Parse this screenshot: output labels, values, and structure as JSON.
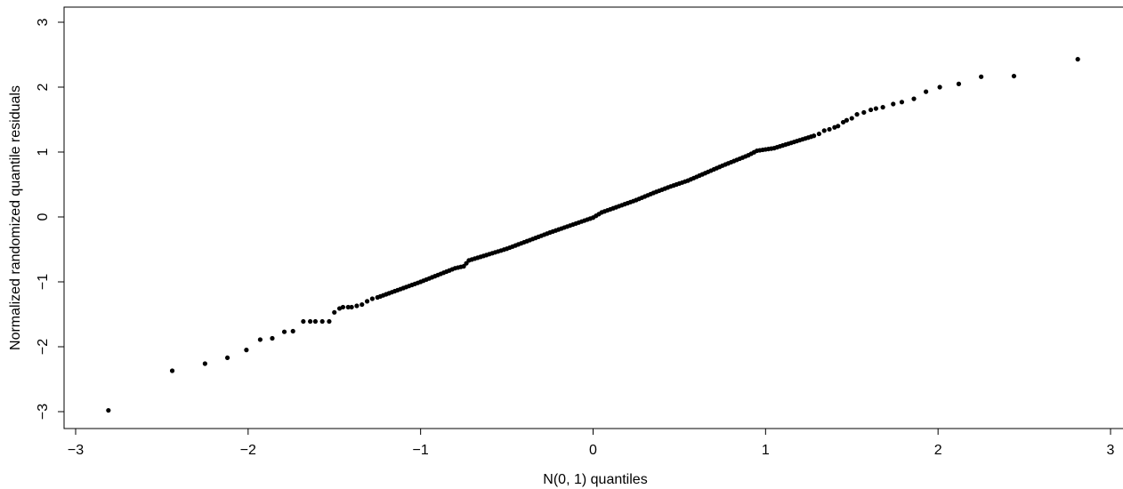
{
  "chart_data": {
    "type": "scatter",
    "title": "",
    "xlabel": "N(0, 1) quantiles",
    "ylabel": "Normalized randomized quantile residuals",
    "xlim": [
      -3,
      3
    ],
    "ylim": [
      -3,
      3
    ],
    "xticks": [
      -3,
      -2,
      -1,
      0,
      1,
      2,
      3
    ],
    "yticks": [
      -3,
      -2,
      -1,
      0,
      1,
      2,
      3
    ],
    "xtick_labels": [
      "−3",
      "−2",
      "−1",
      "0",
      "1",
      "2",
      "3"
    ],
    "ytick_labels": [
      "−3",
      "−2",
      "−1",
      "0",
      "1",
      "2",
      "3"
    ],
    "grid": false,
    "legend": "none",
    "point_color": "#000000",
    "series": [
      {
        "points": [
          [
            -2.81,
            -2.98
          ],
          [
            -2.44,
            -2.37
          ],
          [
            -2.25,
            -2.26
          ],
          [
            -2.12,
            -2.17
          ],
          [
            -2.01,
            -2.05
          ],
          [
            -1.93,
            -1.89
          ],
          [
            -1.86,
            -1.87
          ],
          [
            -1.79,
            -1.77
          ],
          [
            -1.74,
            -1.76
          ],
          [
            -1.68,
            -1.61
          ],
          [
            -1.64,
            -1.61
          ],
          [
            -1.61,
            -1.61
          ],
          [
            -1.57,
            -1.61
          ],
          [
            -1.53,
            -1.61
          ],
          [
            -1.5,
            -1.47
          ],
          [
            -1.47,
            -1.41
          ],
          [
            -1.45,
            -1.39
          ],
          [
            -1.42,
            -1.39
          ],
          [
            -1.4,
            -1.39
          ],
          [
            -1.37,
            -1.37
          ],
          [
            -1.34,
            -1.35
          ],
          [
            -1.31,
            -1.3
          ],
          [
            -1.28,
            -1.26
          ]
        ],
        "band": [
          [
            -1.25,
            -1.24
          ],
          [
            -1.0,
            -1.0
          ],
          [
            -0.8,
            -0.79
          ],
          [
            -0.75,
            -0.76
          ],
          [
            -0.72,
            -0.67
          ],
          [
            -0.5,
            -0.49
          ],
          [
            -0.25,
            -0.24
          ],
          [
            0.0,
            -0.01
          ],
          [
            0.05,
            0.07
          ],
          [
            0.25,
            0.26
          ],
          [
            0.35,
            0.37
          ],
          [
            0.45,
            0.47
          ],
          [
            0.55,
            0.56
          ],
          [
            0.75,
            0.79
          ],
          [
            0.9,
            0.95
          ],
          [
            0.95,
            1.02
          ],
          [
            1.05,
            1.06
          ],
          [
            1.28,
            1.25
          ]
        ],
        "upper": [
          [
            1.31,
            1.28
          ],
          [
            1.34,
            1.33
          ],
          [
            1.37,
            1.35
          ],
          [
            1.4,
            1.38
          ],
          [
            1.42,
            1.4
          ],
          [
            1.45,
            1.46
          ],
          [
            1.47,
            1.49
          ],
          [
            1.5,
            1.52
          ],
          [
            1.53,
            1.58
          ],
          [
            1.57,
            1.61
          ],
          [
            1.61,
            1.65
          ],
          [
            1.64,
            1.67
          ],
          [
            1.68,
            1.69
          ],
          [
            1.74,
            1.74
          ],
          [
            1.79,
            1.77
          ],
          [
            1.86,
            1.82
          ],
          [
            1.93,
            1.93
          ],
          [
            2.01,
            2.0
          ],
          [
            2.12,
            2.05
          ],
          [
            2.25,
            2.16
          ],
          [
            2.44,
            2.17
          ],
          [
            2.81,
            2.43
          ]
        ]
      }
    ]
  }
}
